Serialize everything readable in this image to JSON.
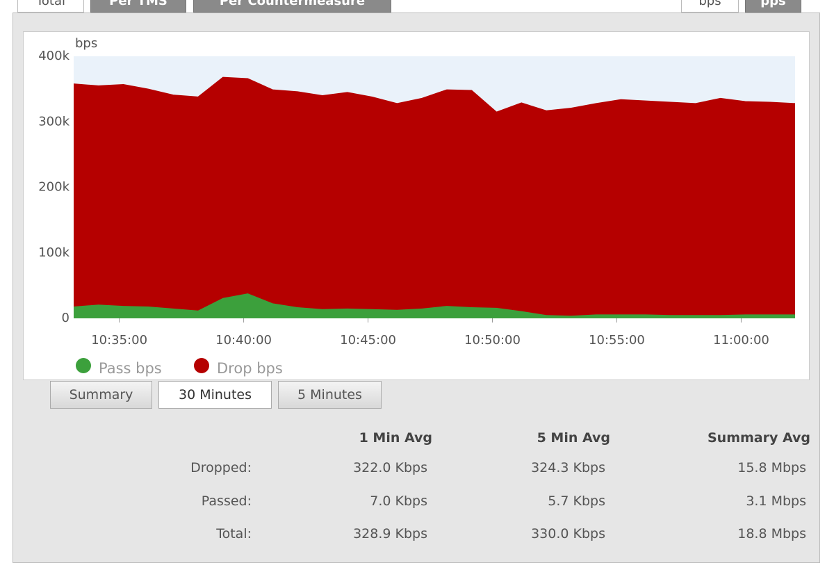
{
  "tabs": {
    "view": [
      "Total",
      "Per TMS",
      "Per Countermeasure"
    ],
    "unit": [
      "bps",
      "pps"
    ]
  },
  "chart_data": {
    "type": "area",
    "stacked": true,
    "y_label": "bps",
    "x": [
      "10:33:10",
      "10:34:10",
      "10:35:10",
      "10:36:10",
      "10:37:10",
      "10:38:10",
      "10:39:10",
      "10:40:10",
      "10:41:10",
      "10:42:10",
      "10:43:10",
      "10:44:10",
      "10:45:10",
      "10:46:10",
      "10:47:10",
      "10:48:10",
      "10:49:10",
      "10:50:10",
      "10:51:10",
      "10:52:10",
      "10:53:10",
      "10:54:10",
      "10:55:10",
      "10:56:10",
      "10:57:10",
      "10:58:10",
      "10:59:10",
      "11:00:10",
      "11:01:10",
      "11:02:10"
    ],
    "series": [
      {
        "name": "Pass bps",
        "color": "#3ca03c",
        "values": [
          18000,
          21000,
          19000,
          18000,
          15000,
          12000,
          31000,
          38000,
          23000,
          17000,
          14000,
          15000,
          14000,
          13000,
          15000,
          19000,
          17000,
          16000,
          11000,
          5000,
          4000,
          6000,
          6000,
          6000,
          5000,
          5000,
          5000,
          6000,
          6000,
          6000
        ]
      },
      {
        "name": "Drop bps",
        "color": "#b50000",
        "values": [
          340000,
          334000,
          338000,
          332000,
          326000,
          326000,
          337000,
          328000,
          326000,
          329000,
          326000,
          330000,
          324000,
          315000,
          321000,
          330000,
          331000,
          299000,
          318000,
          312000,
          317000,
          322000,
          328000,
          326000,
          325000,
          323000,
          331000,
          325000,
          324000,
          322000
        ]
      }
    ],
    "xlim": [
      "10:33:10",
      "11:02:10"
    ],
    "xticks": [
      "10:35:00",
      "10:40:00",
      "10:45:00",
      "10:50:00",
      "10:55:00",
      "11:00:00"
    ],
    "ylim": [
      0,
      400000
    ],
    "yticks": [
      0,
      {
        "value": 100000,
        "label": "100k"
      },
      {
        "value": 200000,
        "label": "200k"
      },
      {
        "value": 300000,
        "label": "300k"
      },
      {
        "value": 400000,
        "label": "400k"
      }
    ],
    "grid": false,
    "plot_background": "#eaf2fa"
  },
  "buttons": [
    "Summary",
    "30 Minutes",
    "5 Minutes"
  ],
  "table": {
    "columns": [
      "1 Min Avg",
      "5 Min Avg",
      "Summary Avg"
    ],
    "rows": [
      [
        "Dropped:",
        "322.0 Kbps",
        "324.3 Kbps",
        "15.8 Mbps"
      ],
      [
        "Passed:",
        "7.0 Kbps",
        "5.7 Kbps",
        "3.1 Mbps"
      ],
      [
        "Total:",
        "328.9 Kbps",
        "330.0 Kbps",
        "18.8 Mbps"
      ]
    ]
  }
}
